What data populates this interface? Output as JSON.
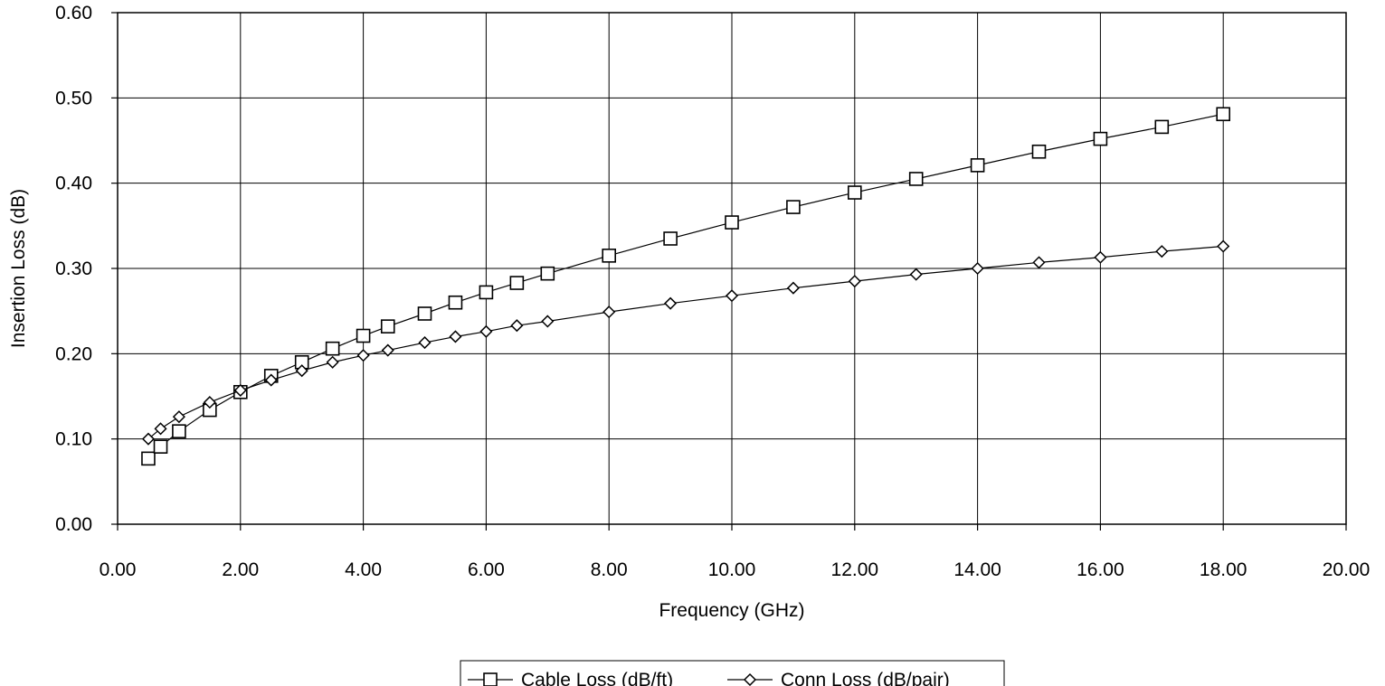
{
  "chart_data": {
    "type": "line",
    "title": "",
    "xlabel": "Frequency (GHz)",
    "ylabel": "Insertion Loss (dB)",
    "xlim": [
      0,
      20
    ],
    "ylim": [
      0,
      0.6
    ],
    "x_ticks": [
      "0.00",
      "2.00",
      "4.00",
      "6.00",
      "8.00",
      "10.00",
      "12.00",
      "14.00",
      "16.00",
      "18.00",
      "20.00"
    ],
    "y_ticks": [
      "0.00",
      "0.10",
      "0.20",
      "0.30",
      "0.40",
      "0.50",
      "0.60"
    ],
    "x_tick_values": [
      0,
      2,
      4,
      6,
      8,
      10,
      12,
      14,
      16,
      18,
      20
    ],
    "y_tick_values": [
      0,
      0.1,
      0.2,
      0.3,
      0.4,
      0.5,
      0.6
    ],
    "grid": true,
    "legend_position": "bottom-center",
    "series": [
      {
        "name": "Cable Loss (dB/ft)",
        "marker": "square",
        "color": "#000000",
        "x": [
          0.5,
          0.7,
          1,
          1.5,
          2,
          2.5,
          3,
          3.5,
          4,
          4.4,
          5,
          5.5,
          6,
          6.5,
          7,
          8,
          9,
          10,
          11,
          12,
          13,
          14,
          15,
          16,
          17,
          18
        ],
        "y": [
          0.077,
          0.091,
          0.109,
          0.134,
          0.155,
          0.174,
          0.19,
          0.206,
          0.221,
          0.232,
          0.247,
          0.26,
          0.272,
          0.283,
          0.294,
          0.315,
          0.335,
          0.354,
          0.372,
          0.389,
          0.405,
          0.421,
          0.437,
          0.452,
          0.466,
          0.481
        ]
      },
      {
        "name": "Conn Loss (dB/pair)",
        "marker": "diamond",
        "color": "#000000",
        "x": [
          0.5,
          0.7,
          1,
          1.5,
          2,
          2.5,
          3,
          3.5,
          4,
          4.4,
          5,
          5.5,
          6,
          6.5,
          7,
          8,
          9,
          10,
          11,
          12,
          13,
          14,
          15,
          16,
          17,
          18
        ],
        "y": [
          0.1,
          0.112,
          0.126,
          0.143,
          0.157,
          0.169,
          0.18,
          0.19,
          0.198,
          0.204,
          0.213,
          0.22,
          0.226,
          0.233,
          0.238,
          0.249,
          0.259,
          0.268,
          0.277,
          0.285,
          0.293,
          0.3,
          0.307,
          0.313,
          0.32,
          0.326
        ]
      }
    ]
  }
}
